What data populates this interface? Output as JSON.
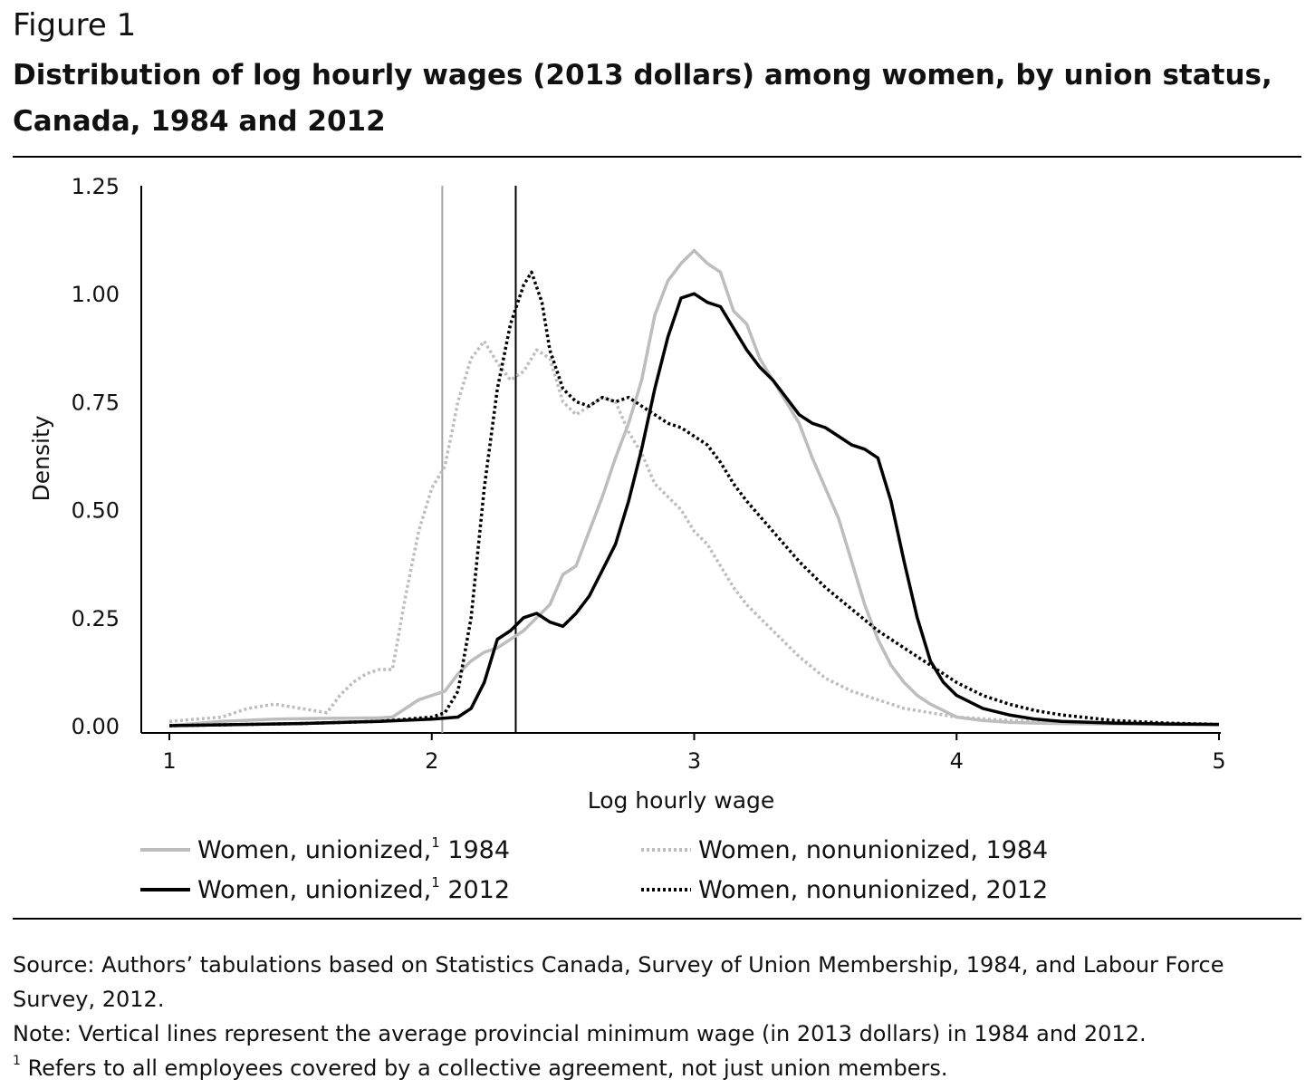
{
  "figure_label": "Figure 1",
  "title": "Distribution of log hourly wages (2013 dollars) among women, by union status, Canada, 1984 and 2012",
  "source": "Source: Authors’ tabulations based on Statistics Canada, Survey of Union Membership, 1984, and Labour Force Survey, 2012.",
  "note": "Note: Vertical lines represent the average provincial minimum wage (in 2013 dollars) in 1984 and 2012.",
  "footnote_marker": "1",
  "footnote_text": "Refers to all employees covered by a collective agreement, not just union members.",
  "chart_data": {
    "type": "line",
    "xlabel": "Log hourly wage",
    "ylabel": "Density",
    "xlim": [
      0.9,
      5.0
    ],
    "ylim": [
      0,
      1.25
    ],
    "xticks": [
      "1",
      "2",
      "3",
      "4",
      "5"
    ],
    "yticks": [
      "0.00",
      "0.25",
      "0.50",
      "0.75",
      "1.00",
      "1.25"
    ],
    "grid": false,
    "legend_position": "bottom",
    "vertical_lines": [
      {
        "x": 2.04,
        "color": "#a6a6a6"
      },
      {
        "x": 2.32,
        "color": "#000000"
      }
    ],
    "series": [
      {
        "name": "Women, unionized,",
        "name_sup": "1",
        "name_suffix": " 1984",
        "color": "#bdbdbd",
        "dash": "solid",
        "x": [
          1.0,
          1.2,
          1.4,
          1.6,
          1.8,
          1.85,
          1.9,
          1.95,
          2.0,
          2.05,
          2.1,
          2.15,
          2.2,
          2.25,
          2.3,
          2.35,
          2.4,
          2.45,
          2.5,
          2.55,
          2.6,
          2.65,
          2.7,
          2.75,
          2.8,
          2.85,
          2.9,
          2.95,
          3.0,
          3.05,
          3.1,
          3.15,
          3.2,
          3.25,
          3.3,
          3.35,
          3.4,
          3.45,
          3.5,
          3.55,
          3.6,
          3.65,
          3.7,
          3.75,
          3.8,
          3.85,
          3.9,
          3.95,
          4.0,
          4.1,
          4.2,
          4.3,
          4.4,
          4.6,
          4.8,
          5.0
        ],
        "y": [
          0.0,
          0.01,
          0.015,
          0.017,
          0.018,
          0.02,
          0.04,
          0.06,
          0.07,
          0.08,
          0.12,
          0.15,
          0.17,
          0.18,
          0.2,
          0.22,
          0.25,
          0.28,
          0.35,
          0.37,
          0.45,
          0.53,
          0.62,
          0.7,
          0.8,
          0.95,
          1.03,
          1.07,
          1.1,
          1.07,
          1.05,
          0.96,
          0.93,
          0.85,
          0.8,
          0.75,
          0.7,
          0.62,
          0.55,
          0.48,
          0.38,
          0.28,
          0.2,
          0.14,
          0.1,
          0.07,
          0.05,
          0.035,
          0.02,
          0.012,
          0.008,
          0.006,
          0.005,
          0.004,
          0.003,
          0.003
        ]
      },
      {
        "name": "Women, unionized,",
        "name_sup": "1",
        "name_suffix": " 2012",
        "color": "#000000",
        "dash": "solid",
        "x": [
          1.0,
          1.5,
          1.8,
          2.0,
          2.1,
          2.15,
          2.2,
          2.25,
          2.3,
          2.35,
          2.4,
          2.45,
          2.5,
          2.55,
          2.6,
          2.65,
          2.7,
          2.75,
          2.8,
          2.85,
          2.9,
          2.95,
          3.0,
          3.05,
          3.1,
          3.15,
          3.2,
          3.25,
          3.3,
          3.35,
          3.4,
          3.45,
          3.5,
          3.55,
          3.6,
          3.65,
          3.7,
          3.75,
          3.8,
          3.85,
          3.9,
          3.95,
          4.0,
          4.1,
          4.2,
          4.3,
          4.4,
          4.6,
          4.8,
          5.0
        ],
        "y": [
          0.0,
          0.005,
          0.01,
          0.015,
          0.02,
          0.04,
          0.1,
          0.2,
          0.22,
          0.25,
          0.26,
          0.24,
          0.23,
          0.26,
          0.3,
          0.36,
          0.42,
          0.52,
          0.64,
          0.78,
          0.9,
          0.99,
          1.0,
          0.98,
          0.97,
          0.92,
          0.87,
          0.83,
          0.8,
          0.76,
          0.72,
          0.7,
          0.69,
          0.67,
          0.65,
          0.64,
          0.62,
          0.52,
          0.38,
          0.25,
          0.15,
          0.1,
          0.07,
          0.04,
          0.025,
          0.015,
          0.01,
          0.006,
          0.004,
          0.003
        ]
      },
      {
        "name": "Women, nonunionized, 1984",
        "color": "#bdbdbd",
        "dash": "dot",
        "x": [
          1.0,
          1.2,
          1.3,
          1.4,
          1.5,
          1.6,
          1.65,
          1.7,
          1.75,
          1.8,
          1.85,
          1.9,
          1.95,
          2.0,
          2.05,
          2.1,
          2.15,
          2.2,
          2.25,
          2.3,
          2.35,
          2.4,
          2.45,
          2.5,
          2.55,
          2.6,
          2.65,
          2.7,
          2.75,
          2.8,
          2.85,
          2.9,
          2.95,
          3.0,
          3.05,
          3.1,
          3.15,
          3.2,
          3.3,
          3.4,
          3.5,
          3.6,
          3.7,
          3.8,
          4.0,
          4.2,
          4.4,
          4.6,
          4.8,
          5.0
        ],
        "y": [
          0.01,
          0.02,
          0.04,
          0.05,
          0.04,
          0.03,
          0.07,
          0.1,
          0.12,
          0.13,
          0.13,
          0.3,
          0.45,
          0.55,
          0.6,
          0.75,
          0.85,
          0.89,
          0.84,
          0.8,
          0.82,
          0.87,
          0.85,
          0.75,
          0.72,
          0.74,
          0.76,
          0.75,
          0.68,
          0.63,
          0.56,
          0.53,
          0.5,
          0.45,
          0.42,
          0.37,
          0.32,
          0.28,
          0.22,
          0.16,
          0.11,
          0.08,
          0.06,
          0.04,
          0.02,
          0.012,
          0.008,
          0.006,
          0.004,
          0.003
        ]
      },
      {
        "name": "Women, nonunionized, 2012",
        "color": "#000000",
        "dash": "dot",
        "x": [
          1.0,
          1.5,
          1.8,
          2.0,
          2.05,
          2.1,
          2.15,
          2.2,
          2.25,
          2.3,
          2.35,
          2.38,
          2.42,
          2.45,
          2.5,
          2.55,
          2.6,
          2.65,
          2.7,
          2.75,
          2.8,
          2.85,
          2.9,
          2.95,
          3.0,
          3.05,
          3.1,
          3.15,
          3.2,
          3.3,
          3.4,
          3.5,
          3.6,
          3.7,
          3.8,
          3.9,
          4.0,
          4.1,
          4.2,
          4.3,
          4.4,
          4.6,
          4.8,
          5.0
        ],
        "y": [
          0.0,
          0.005,
          0.01,
          0.02,
          0.03,
          0.08,
          0.25,
          0.55,
          0.78,
          0.93,
          1.02,
          1.05,
          0.98,
          0.87,
          0.78,
          0.75,
          0.74,
          0.76,
          0.75,
          0.76,
          0.74,
          0.72,
          0.7,
          0.69,
          0.67,
          0.65,
          0.61,
          0.56,
          0.52,
          0.45,
          0.38,
          0.32,
          0.27,
          0.22,
          0.18,
          0.14,
          0.1,
          0.07,
          0.05,
          0.035,
          0.025,
          0.012,
          0.006,
          0.003
        ]
      }
    ]
  }
}
